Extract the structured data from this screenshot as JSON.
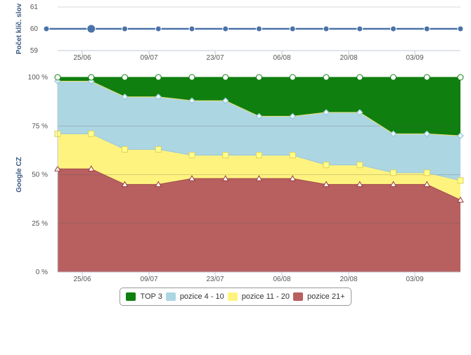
{
  "chart_data": [
    {
      "type": "line",
      "title": "",
      "ylabel": "Počet klíč. slov",
      "ylim": [
        59,
        61
      ],
      "yticks": [
        "61",
        "60",
        "59"
      ],
      "xticks": [
        "25/06",
        "09/07",
        "23/07",
        "06/08",
        "20/08",
        "03/09"
      ],
      "series": [
        {
          "values": [
            60,
            60,
            60,
            60,
            60,
            60,
            60,
            60,
            60,
            60,
            60,
            60,
            60
          ]
        }
      ],
      "colors": {
        "line": "#4a72a8"
      },
      "highlighted_index": 1
    },
    {
      "type": "area",
      "stacked": true,
      "ylabel": "Google CZ",
      "ylim": [
        0,
        100
      ],
      "yticks": [
        "100 %",
        "75 %",
        "50 %",
        "25 %",
        "0 %"
      ],
      "xticks": [
        "25/06",
        "09/07",
        "23/07",
        "06/08",
        "20/08",
        "03/09"
      ],
      "series": [
        {
          "name": "pozice 21+",
          "color": "#b86060",
          "values": [
            53,
            53,
            45,
            45,
            48,
            48,
            48,
            48,
            45,
            45,
            45,
            45,
            37
          ]
        },
        {
          "name": "pozice 11 - 20",
          "color": "#fff380",
          "values": [
            18,
            18,
            18,
            18,
            12,
            12,
            12,
            12,
            10,
            10,
            6,
            6,
            10
          ]
        },
        {
          "name": "pozice 4 - 10",
          "color": "#acd6e2",
          "values": [
            27,
            27,
            27,
            27,
            28,
            28,
            20,
            20,
            27,
            27,
            20,
            20,
            23
          ]
        },
        {
          "name": "TOP 3",
          "color": "#0f7f0f",
          "values": [
            2,
            2,
            10,
            10,
            12,
            12,
            20,
            20,
            18,
            18,
            29,
            29,
            30
          ]
        }
      ],
      "grid": true,
      "legend_position": "bottom"
    }
  ],
  "legend": [
    {
      "label": "TOP 3",
      "color": "#0f7f0f"
    },
    {
      "label": "pozice 4 - 10",
      "color": "#acd6e2"
    },
    {
      "label": "pozice 11 - 20",
      "color": "#fff380"
    },
    {
      "label": "pozice 21+",
      "color": "#b86060"
    }
  ]
}
